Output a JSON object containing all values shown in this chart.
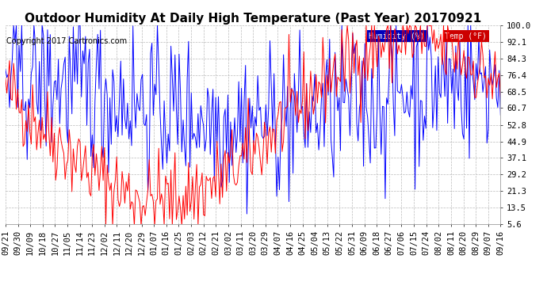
{
  "title": "Outdoor Humidity At Daily High Temperature (Past Year) 20170921",
  "copyright": "Copyright 2017 Cartronics.com",
  "legend_humidity_label": "Humidity (%)",
  "legend_temp_label": "Temp (°F)",
  "humidity_color": "#0000ff",
  "temp_color": "#ff0000",
  "legend_humidity_bg": "#0000bb",
  "legend_temp_bg": "#cc0000",
  "background_color": "#ffffff",
  "grid_color": "#bbbbbb",
  "yticks": [
    5.6,
    13.5,
    21.3,
    29.2,
    37.1,
    44.9,
    52.8,
    60.7,
    68.5,
    76.4,
    84.3,
    92.1,
    100.0
  ],
  "ylim": [
    5.6,
    100.0
  ],
  "title_fontsize": 11,
  "copyright_fontsize": 7,
  "tick_fontsize": 7.5,
  "x_tick_dates": [
    "09/21",
    "09/30",
    "10/09",
    "10/18",
    "10/27",
    "11/05",
    "11/14",
    "11/23",
    "12/02",
    "12/11",
    "12/20",
    "12/29",
    "01/07",
    "01/16",
    "01/25",
    "02/03",
    "02/12",
    "02/21",
    "03/02",
    "03/11",
    "03/20",
    "03/29",
    "04/07",
    "04/16",
    "04/25",
    "05/04",
    "05/13",
    "05/22",
    "05/31",
    "06/09",
    "06/18",
    "06/27",
    "07/06",
    "07/15",
    "07/24",
    "08/02",
    "08/11",
    "08/20",
    "08/29",
    "09/07",
    "09/16"
  ],
  "num_points": 366
}
